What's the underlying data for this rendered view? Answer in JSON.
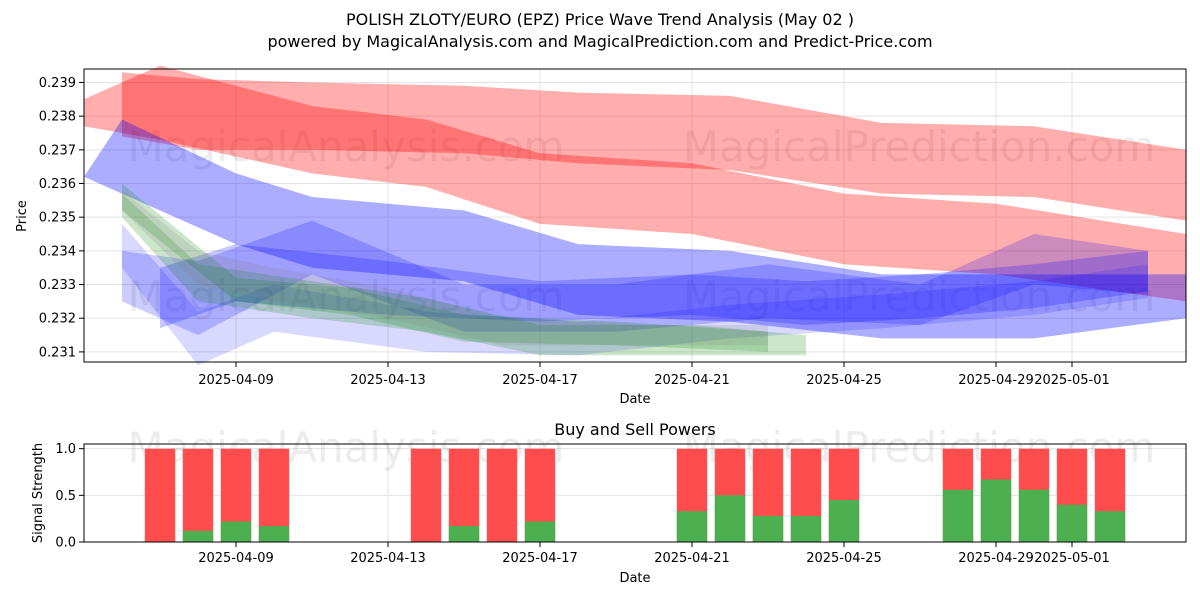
{
  "chart_data": [
    {
      "type": "area",
      "title": "POLISH ZLOTY/EURO (EPZ) Price Wave Trend Analysis (May 02 )",
      "subtitle": "powered by MagicalAnalysis.com and MagicalPrediction.com and Predict-Price.com",
      "xlabel": "Date",
      "ylabel": "Price",
      "ylim": [
        0.2307,
        0.2394
      ],
      "xlim": [
        "2025-04-05",
        "2025-05-04"
      ],
      "x_ticks": [
        "2025-04-09",
        "2025-04-13",
        "2025-04-17",
        "2025-04-21",
        "2025-04-25",
        "2025-04-29",
        "2025-05-01"
      ],
      "y_ticks": [
        0.231,
        0.232,
        0.233,
        0.234,
        0.235,
        0.236,
        0.237,
        0.238,
        0.239
      ],
      "grid": true,
      "watermarks": [
        "MagicalAnalysis.com",
        "MagicalPrediction.com"
      ],
      "series": [
        {
          "color": "#ff0000",
          "opacity": 0.32,
          "x": [
            "2025-04-06",
            "2025-04-08",
            "2025-04-11",
            "2025-04-15",
            "2025-04-18",
            "2025-04-22",
            "2025-04-26",
            "2025-04-30",
            "2025-05-04"
          ],
          "upper": [
            0.2393,
            0.2391,
            0.239,
            0.2389,
            0.2387,
            0.2386,
            0.2378,
            0.2377,
            0.237
          ],
          "lower": [
            0.2374,
            0.237,
            0.237,
            0.2369,
            0.2366,
            0.2364,
            0.2357,
            0.2356,
            0.2349
          ]
        },
        {
          "color": "#ff0000",
          "opacity": 0.32,
          "x": [
            "2025-04-05",
            "2025-04-07",
            "2025-04-11",
            "2025-04-14",
            "2025-04-17",
            "2025-04-21",
            "2025-04-25",
            "2025-04-29",
            "2025-05-04"
          ],
          "upper": [
            0.2385,
            0.2395,
            0.2383,
            0.2379,
            0.2369,
            0.2366,
            0.2357,
            0.2354,
            0.2345
          ],
          "lower": [
            0.2377,
            0.2373,
            0.2363,
            0.2359,
            0.2348,
            0.2345,
            0.2336,
            0.2333,
            0.2325
          ]
        },
        {
          "color": "#0000ff",
          "opacity": 0.32,
          "x": [
            "2025-04-05",
            "2025-04-06",
            "2025-04-09",
            "2025-04-11",
            "2025-04-15",
            "2025-04-18",
            "2025-04-22",
            "2025-04-26",
            "2025-04-30",
            "2025-05-04"
          ],
          "upper": [
            0.2362,
            0.2379,
            0.2363,
            0.2356,
            0.2352,
            0.2342,
            0.234,
            0.2333,
            0.2333,
            0.2333
          ],
          "lower": [
            0.2362,
            0.2357,
            0.2342,
            0.2335,
            0.2331,
            0.2321,
            0.2319,
            0.2314,
            0.2314,
            0.232
          ]
        },
        {
          "color": "#0000ff",
          "opacity": 0.22,
          "x": [
            "2025-04-07",
            "2025-04-09",
            "2025-04-13",
            "2025-04-17",
            "2025-04-21",
            "2025-04-24",
            "2025-04-27",
            "2025-04-30",
            "2025-05-03"
          ],
          "upper": [
            0.2335,
            0.2342,
            0.2337,
            0.2331,
            0.2333,
            0.2331,
            0.2333,
            0.2336,
            0.234
          ],
          "lower": [
            0.2317,
            0.2325,
            0.2321,
            0.2319,
            0.2321,
            0.2318,
            0.232,
            0.2323,
            0.2328
          ]
        },
        {
          "color": "#0000ff",
          "opacity": 0.2,
          "x": [
            "2025-04-06",
            "2025-04-08",
            "2025-04-11",
            "2025-04-15",
            "2025-04-19",
            "2025-04-23",
            "2025-04-27",
            "2025-04-30",
            "2025-05-03"
          ],
          "upper": [
            0.234,
            0.2337,
            0.2349,
            0.233,
            0.233,
            0.2336,
            0.233,
            0.2345,
            0.234
          ],
          "lower": [
            0.2325,
            0.2315,
            0.2333,
            0.2316,
            0.2316,
            0.232,
            0.2318,
            0.233,
            0.2327
          ]
        },
        {
          "color": "#0000ff",
          "opacity": 0.15,
          "x": [
            "2025-04-06",
            "2025-04-08",
            "2025-04-10",
            "2025-04-14",
            "2025-04-18",
            "2025-04-22",
            "2025-04-26",
            "2025-04-30",
            "2025-05-03"
          ],
          "upper": [
            0.2348,
            0.2322,
            0.233,
            0.2322,
            0.2319,
            0.2324,
            0.2327,
            0.2331,
            0.2336
          ],
          "lower": [
            0.2335,
            0.2306,
            0.2316,
            0.231,
            0.2309,
            0.2314,
            0.2317,
            0.2321,
            0.2326
          ]
        },
        {
          "color": "#008000",
          "opacity": 0.2,
          "x": [
            "2025-04-06",
            "2025-04-08",
            "2025-04-11",
            "2025-04-14",
            "2025-04-17",
            "2025-04-21",
            "2025-04-24"
          ],
          "upper": [
            0.2357,
            0.2336,
            0.2331,
            0.2326,
            0.2318,
            0.2318,
            0.2315
          ],
          "lower": [
            0.235,
            0.2325,
            0.232,
            0.2316,
            0.2309,
            0.2309,
            0.2309
          ]
        },
        {
          "color": "#008000",
          "opacity": 0.2,
          "x": [
            "2025-04-06",
            "2025-04-09",
            "2025-04-12",
            "2025-04-15",
            "2025-04-19",
            "2025-04-23"
          ],
          "upper": [
            0.236,
            0.2332,
            0.2329,
            0.2321,
            0.2319,
            0.2316
          ],
          "lower": [
            0.2352,
            0.2325,
            0.2321,
            0.2313,
            0.2312,
            0.231
          ]
        },
        {
          "color": "#808080",
          "opacity": 0.18,
          "x": [
            "2025-04-06",
            "2025-04-08",
            "2025-04-10",
            "2025-04-13",
            "2025-04-16",
            "2025-04-20",
            "2025-04-23"
          ],
          "upper": [
            0.2358,
            0.234,
            0.2335,
            0.2329,
            0.232,
            0.2318,
            0.2318
          ],
          "lower": [
            0.2352,
            0.233,
            0.2325,
            0.232,
            0.2312,
            0.2312,
            0.2312
          ]
        }
      ]
    },
    {
      "type": "bar",
      "title": "Buy and Sell Powers",
      "xlabel": "Date",
      "ylabel": "Signal Strength",
      "ylim": [
        0,
        1.05
      ],
      "xlim": [
        "2025-04-05",
        "2025-05-04"
      ],
      "x_ticks": [
        "2025-04-09",
        "2025-04-13",
        "2025-04-17",
        "2025-04-21",
        "2025-04-25",
        "2025-04-29",
        "2025-05-01"
      ],
      "y_ticks": [
        "0.0",
        "0.5",
        "1.0"
      ],
      "grid": true,
      "watermarks": [
        "MagicalAnalysis.com",
        "MagicalPrediction.com"
      ],
      "colors": {
        "buy": "#4caf50",
        "sell": "#ff4d4d"
      },
      "dates": [
        "2025-04-07",
        "2025-04-08",
        "2025-04-09",
        "2025-04-10",
        "2025-04-14",
        "2025-04-15",
        "2025-04-16",
        "2025-04-17",
        "2025-04-21",
        "2025-04-22",
        "2025-04-23",
        "2025-04-24",
        "2025-04-25",
        "2025-04-28",
        "2025-04-29",
        "2025-04-30",
        "2025-05-01",
        "2025-05-02"
      ],
      "buy": [
        0.0,
        0.12,
        0.22,
        0.17,
        0.0,
        0.17,
        0.0,
        0.22,
        0.33,
        0.5,
        0.28,
        0.28,
        0.45,
        0.56,
        0.67,
        0.56,
        0.4,
        0.33
      ],
      "total": [
        1,
        1,
        1,
        1,
        1,
        1,
        1,
        1,
        1,
        1,
        1,
        1,
        1,
        1,
        1,
        1,
        1,
        1
      ]
    }
  ]
}
